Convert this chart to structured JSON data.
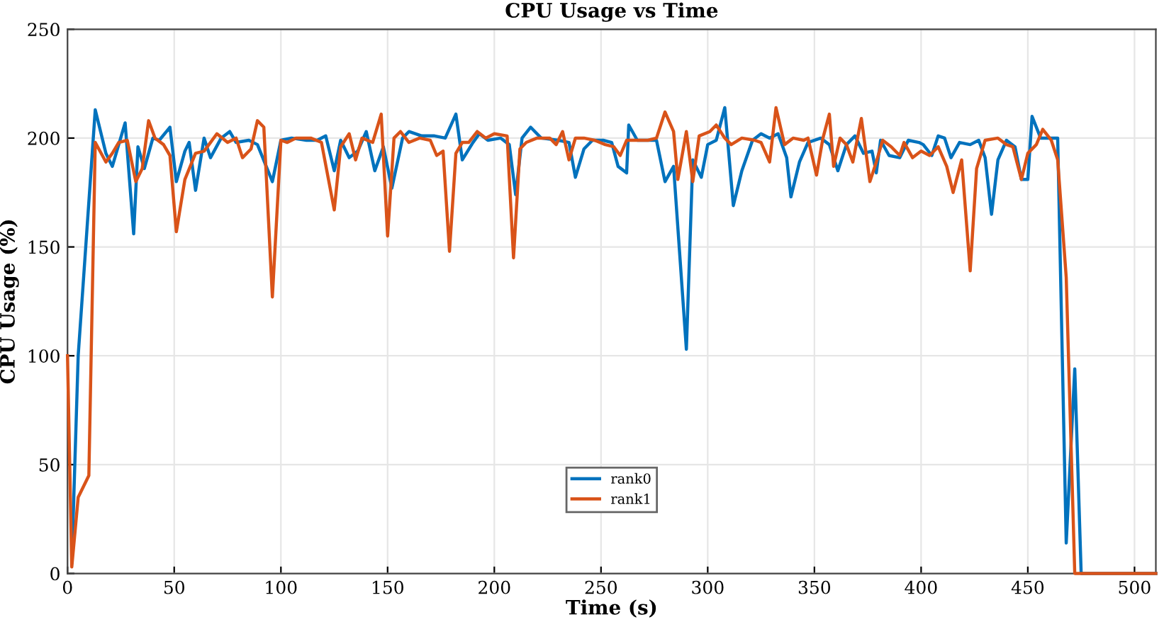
{
  "chart_data": {
    "type": "line",
    "title": "CPU Usage vs Time",
    "xlabel": "Time (s)",
    "ylabel": "CPU Usage (%)",
    "xlim": [
      0,
      510
    ],
    "ylim": [
      0,
      250
    ],
    "xticks": [
      0,
      50,
      100,
      150,
      200,
      250,
      300,
      350,
      400,
      450,
      500
    ],
    "yticks": [
      0,
      50,
      100,
      150,
      200,
      250
    ],
    "grid": true,
    "legend": "bottom",
    "line_style": "solid",
    "series": [
      {
        "name": "rank0",
        "color": "#0072bd",
        "x": [
          2,
          5,
          13,
          18,
          21,
          27,
          31,
          33,
          36,
          40,
          43,
          48,
          51,
          55,
          57,
          60,
          64,
          67,
          72,
          76,
          79,
          85,
          89,
          96,
          100,
          105,
          112,
          117,
          121,
          125,
          128,
          132,
          136,
          140,
          144,
          148,
          152,
          157,
          160,
          166,
          172,
          177,
          182,
          185,
          190,
          193,
          197,
          203,
          207,
          210,
          213,
          217,
          222,
          230,
          235,
          238,
          242,
          246,
          251,
          255,
          258,
          262,
          263,
          267,
          276,
          280,
          284,
          290,
          293,
          297,
          300,
          304,
          308,
          312,
          316,
          321,
          325,
          329,
          333,
          337,
          339,
          343,
          347,
          353,
          357,
          361,
          365,
          369,
          373,
          377,
          379,
          381,
          385,
          390,
          394,
          399,
          401,
          405,
          408,
          411,
          414,
          418,
          423,
          427,
          430,
          433,
          436,
          440,
          444,
          447,
          450,
          452,
          456,
          464,
          468,
          472,
          475,
          510
        ],
        "values": [
          5,
          100,
          213,
          193,
          187,
          207,
          156,
          196,
          186,
          200,
          199,
          205,
          180,
          194,
          198,
          176,
          200,
          191,
          200,
          203,
          198,
          199,
          197,
          180,
          199,
          200,
          199,
          199,
          201,
          185,
          199,
          191,
          194,
          203,
          185,
          196,
          177,
          200,
          203,
          201,
          201,
          200,
          211,
          190,
          198,
          202,
          199,
          200,
          197,
          174,
          200,
          205,
          200,
          199,
          198,
          182,
          195,
          199,
          199,
          198,
          187,
          184,
          206,
          199,
          199,
          180,
          187,
          103,
          190,
          182,
          197,
          199,
          214,
          169,
          185,
          199,
          202,
          200,
          202,
          191,
          173,
          189,
          198,
          200,
          197,
          185,
          197,
          201,
          193,
          194,
          184,
          199,
          192,
          191,
          199,
          198,
          197,
          192,
          201,
          200,
          191,
          198,
          197,
          199,
          191,
          165,
          190,
          199,
          196,
          181,
          181,
          210,
          200,
          200,
          14,
          94,
          0,
          0
        ]
      },
      {
        "name": "rank1",
        "color": "#d95319",
        "x": [
          0,
          2,
          5,
          10,
          13,
          18,
          21,
          24,
          28,
          32,
          35,
          38,
          41,
          45,
          48,
          51,
          55,
          60,
          64,
          67,
          70,
          75,
          79,
          82,
          86,
          89,
          92,
          96,
          100,
          103,
          107,
          114,
          119,
          125,
          128,
          132,
          135,
          138,
          143,
          147,
          150,
          153,
          156,
          160,
          165,
          170,
          173,
          176,
          179,
          182,
          185,
          188,
          192,
          196,
          200,
          206,
          209,
          212,
          215,
          220,
          226,
          229,
          232,
          235,
          238,
          242,
          247,
          252,
          256,
          259,
          262,
          267,
          272,
          276,
          280,
          284,
          286,
          290,
          293,
          296,
          301,
          304,
          308,
          311,
          316,
          322,
          325,
          329,
          332,
          336,
          340,
          345,
          347,
          351,
          354,
          357,
          359,
          362,
          365,
          368,
          372,
          376,
          379,
          382,
          386,
          390,
          392,
          396,
          400,
          404,
          408,
          412,
          415,
          419,
          423,
          426,
          430,
          436,
          440,
          443,
          447,
          450,
          454,
          457,
          461,
          464,
          468,
          472,
          510
        ],
        "values": [
          100,
          3,
          35,
          45,
          198,
          189,
          193,
          198,
          199,
          180,
          186,
          208,
          200,
          197,
          192,
          157,
          181,
          193,
          194,
          198,
          202,
          198,
          200,
          191,
          195,
          208,
          205,
          127,
          199,
          198,
          200,
          200,
          198,
          167,
          196,
          202,
          190,
          200,
          198,
          211,
          155,
          200,
          203,
          198,
          200,
          199,
          192,
          194,
          148,
          193,
          198,
          198,
          203,
          200,
          202,
          201,
          145,
          195,
          198,
          200,
          200,
          197,
          203,
          190,
          200,
          200,
          199,
          197,
          196,
          192,
          199,
          199,
          199,
          200,
          212,
          203,
          181,
          203,
          180,
          201,
          203,
          206,
          200,
          197,
          200,
          199,
          198,
          189,
          214,
          197,
          200,
          199,
          200,
          183,
          200,
          211,
          187,
          200,
          197,
          189,
          209,
          180,
          189,
          199,
          196,
          192,
          198,
          191,
          194,
          192,
          196,
          187,
          175,
          190,
          139,
          186,
          199,
          200,
          197,
          196,
          181,
          193,
          197,
          204,
          199,
          190,
          136,
          0,
          0
        ]
      }
    ]
  }
}
